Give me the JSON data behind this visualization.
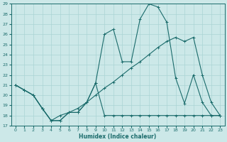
{
  "xlabel": "Humidex (Indice chaleur)",
  "bg_color": "#cce8e8",
  "line_color": "#1a6b6b",
  "grid_color": "#aad4d4",
  "xlim": [
    -0.5,
    23.5
  ],
  "ylim": [
    17,
    29
  ],
  "xticks": [
    0,
    1,
    2,
    3,
    4,
    5,
    6,
    7,
    8,
    9,
    10,
    11,
    12,
    13,
    14,
    15,
    16,
    17,
    18,
    19,
    20,
    21,
    22,
    23
  ],
  "yticks": [
    17,
    18,
    19,
    20,
    21,
    22,
    23,
    24,
    25,
    26,
    27,
    28,
    29
  ],
  "line_zigzag_x": [
    0,
    1,
    2,
    3,
    4,
    5,
    6,
    7,
    8,
    9,
    10,
    11,
    12,
    13,
    14,
    15,
    16,
    17,
    18,
    19,
    20,
    21,
    22,
    23
  ],
  "line_zigzag_y": [
    21.0,
    20.5,
    20.0,
    18.7,
    17.5,
    17.5,
    18.3,
    18.3,
    19.3,
    21.2,
    26.0,
    26.5,
    23.3,
    23.3,
    27.5,
    29.0,
    28.7,
    27.2,
    21.7,
    19.2,
    22.0,
    19.3,
    18.0,
    18.0
  ],
  "line_straight_x": [
    0,
    1,
    2,
    3,
    4,
    5,
    6,
    7,
    8,
    9,
    10,
    11,
    12,
    13,
    14,
    15,
    16,
    17,
    18,
    19,
    20,
    21,
    22,
    23
  ],
  "line_straight_y": [
    21.0,
    20.5,
    20.0,
    18.7,
    17.5,
    18.0,
    18.3,
    18.7,
    19.3,
    20.0,
    20.7,
    21.3,
    22.0,
    22.7,
    23.3,
    24.0,
    24.7,
    25.3,
    25.7,
    25.3,
    25.7,
    22.0,
    19.3,
    18.0
  ],
  "line_flat_x": [
    0,
    1,
    2,
    3,
    4,
    5,
    6,
    7,
    8,
    9,
    10,
    11,
    12,
    13,
    14,
    15,
    16,
    17,
    18,
    19,
    20,
    21,
    22,
    23
  ],
  "line_flat_y": [
    21.0,
    20.5,
    20.0,
    18.7,
    17.5,
    17.5,
    18.3,
    18.3,
    19.3,
    21.2,
    18.0,
    18.0,
    18.0,
    18.0,
    18.0,
    18.0,
    18.0,
    18.0,
    18.0,
    18.0,
    18.0,
    18.0,
    18.0,
    18.0
  ]
}
